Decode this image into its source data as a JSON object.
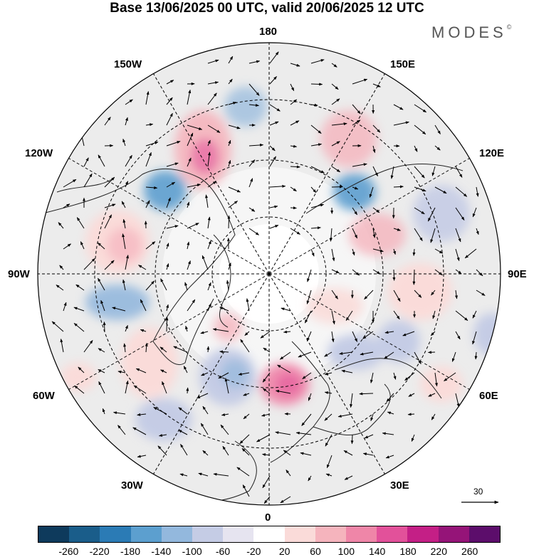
{
  "title": "Base 13/06/2025 00 UTC, valid 20/06/2025 12 UTC",
  "brand": "MODES",
  "brand_mark": "©",
  "meridian_labels": {
    "top": "180",
    "bottom": "0",
    "left": "90W",
    "right": "90E",
    "upper_left_near": "150W",
    "upper_left_far": "120W",
    "lower_left_near": "30W",
    "lower_left_far": "60W",
    "upper_right_near": "150E",
    "upper_right_far": "120E",
    "lower_right_near": "30E",
    "lower_right_far": "60E"
  },
  "vector_scale_label": "30",
  "colorbar": {
    "colors": [
      "#0e3a5c",
      "#1a5d8a",
      "#2b7bb5",
      "#5c9fcf",
      "#93b8dd",
      "#c5cce5",
      "#e6e4f0",
      "#ffffff",
      "#fadbd9",
      "#f5b4bd",
      "#ef86a8",
      "#e2519a",
      "#c41f86",
      "#951478",
      "#5c0d6b"
    ],
    "ticks": [
      "-260",
      "-220",
      "-180",
      "-140",
      "-100",
      "-60",
      "-20",
      "20",
      "60",
      "100",
      "140",
      "180",
      "220",
      "260"
    ]
  }
}
